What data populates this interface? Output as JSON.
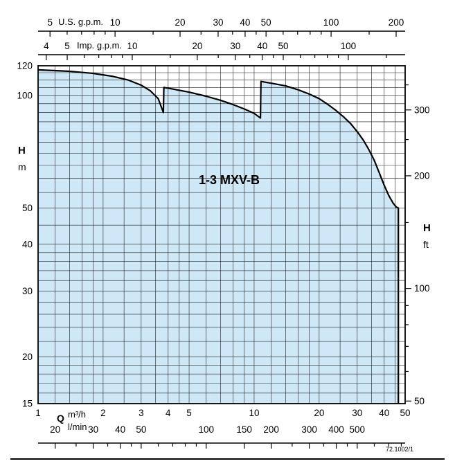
{
  "chart_data": {
    "type": "area",
    "title": "1-3 MXV-B",
    "diagram_code": "72.1002/1",
    "x_scale": "log",
    "y_scale": "log",
    "x_range_m3h": [
      1,
      50
    ],
    "y_range_m": [
      15,
      120
    ],
    "colors": {
      "fill": "#cfe8f7",
      "line": "#000000"
    },
    "envelope_q_h": [
      [
        1,
        117
      ],
      [
        1.4,
        116
      ],
      [
        1.8,
        114.5
      ],
      [
        2.2,
        112.5
      ],
      [
        2.6,
        110
      ],
      [
        3.0,
        106.5
      ],
      [
        3.3,
        103
      ],
      [
        3.6,
        98
      ],
      [
        3.8,
        90
      ],
      [
        3.82,
        105
      ],
      [
        4.2,
        104
      ],
      [
        5,
        102
      ],
      [
        6,
        99.5
      ],
      [
        7,
        97
      ],
      [
        8,
        94.5
      ],
      [
        9,
        92
      ],
      [
        10,
        89.5
      ],
      [
        10.7,
        87
      ],
      [
        10.75,
        109
      ],
      [
        12,
        107.8
      ],
      [
        14,
        106
      ],
      [
        16,
        103.5
      ],
      [
        18,
        100.8
      ],
      [
        20,
        98
      ],
      [
        22,
        94.5
      ],
      [
        24,
        91
      ],
      [
        26,
        87.5
      ],
      [
        28,
        84
      ],
      [
        30,
        80
      ],
      [
        32,
        76
      ],
      [
        34,
        71.5
      ],
      [
        36,
        67
      ],
      [
        38,
        62
      ],
      [
        40,
        57.5
      ],
      [
        42,
        54
      ],
      [
        44,
        51.5
      ],
      [
        45.5,
        50.3
      ],
      [
        46.5,
        50
      ],
      [
        46.5,
        15
      ]
    ],
    "grid": {
      "x_m3h": [
        1,
        1.2,
        1.4,
        1.6,
        1.8,
        2,
        2.5,
        3,
        3.5,
        4,
        4.5,
        5,
        6,
        7,
        8,
        9,
        10,
        12,
        14,
        16,
        18,
        20,
        25,
        30,
        35,
        40,
        45,
        50
      ],
      "y_m": [
        15,
        16,
        17,
        18,
        19,
        20,
        22,
        24,
        26,
        28,
        30,
        32,
        34,
        36,
        38,
        40,
        45,
        50,
        55,
        60,
        65,
        70,
        75,
        80,
        85,
        90,
        95,
        100,
        105,
        110,
        115,
        120
      ]
    },
    "axes": {
      "us_gpm": {
        "title": "U.S. g.p.m.",
        "to_m3h": 0.2271,
        "labels": [
          5,
          10,
          20,
          30,
          40,
          50,
          100,
          200
        ],
        "ticks": [
          4,
          5,
          6,
          7,
          8,
          9,
          10,
          15,
          20,
          25,
          30,
          35,
          40,
          45,
          50,
          60,
          70,
          80,
          90,
          100,
          150,
          200
        ]
      },
      "imp_gpm": {
        "title": "Imp. g.p.m.",
        "to_m3h": 0.2728,
        "labels": [
          4,
          5,
          10,
          20,
          30,
          40,
          50,
          100
        ],
        "ticks": [
          4,
          5,
          6,
          7,
          8,
          9,
          10,
          15,
          20,
          25,
          30,
          35,
          40,
          45,
          50,
          60,
          70,
          80,
          90,
          100,
          150
        ]
      },
      "h_m": {
        "title": "H",
        "unit": "m",
        "labels": [
          15,
          20,
          30,
          40,
          50,
          100,
          120
        ]
      },
      "h_ft": {
        "title": "H",
        "unit": "ft",
        "to_m": 0.3048,
        "labels": [
          50,
          100,
          200,
          300
        ],
        "ticks": [
          50,
          60,
          70,
          80,
          90,
          100,
          150,
          200,
          250,
          300,
          350
        ]
      },
      "q_m3h": {
        "title": "Q",
        "unit": "m³/h",
        "labels": [
          1,
          2,
          3,
          4,
          5,
          10,
          20,
          30,
          40,
          50
        ]
      },
      "l_min": {
        "unit": "l/min",
        "to_m3h": 0.06,
        "labels": [
          20,
          30,
          40,
          50,
          100,
          150,
          200,
          300,
          400,
          500
        ],
        "ticks": [
          20,
          25,
          30,
          35,
          40,
          45,
          50,
          60,
          70,
          80,
          90,
          100,
          150,
          200,
          250,
          300,
          350,
          400,
          450,
          500,
          600,
          700,
          800
        ]
      }
    }
  }
}
